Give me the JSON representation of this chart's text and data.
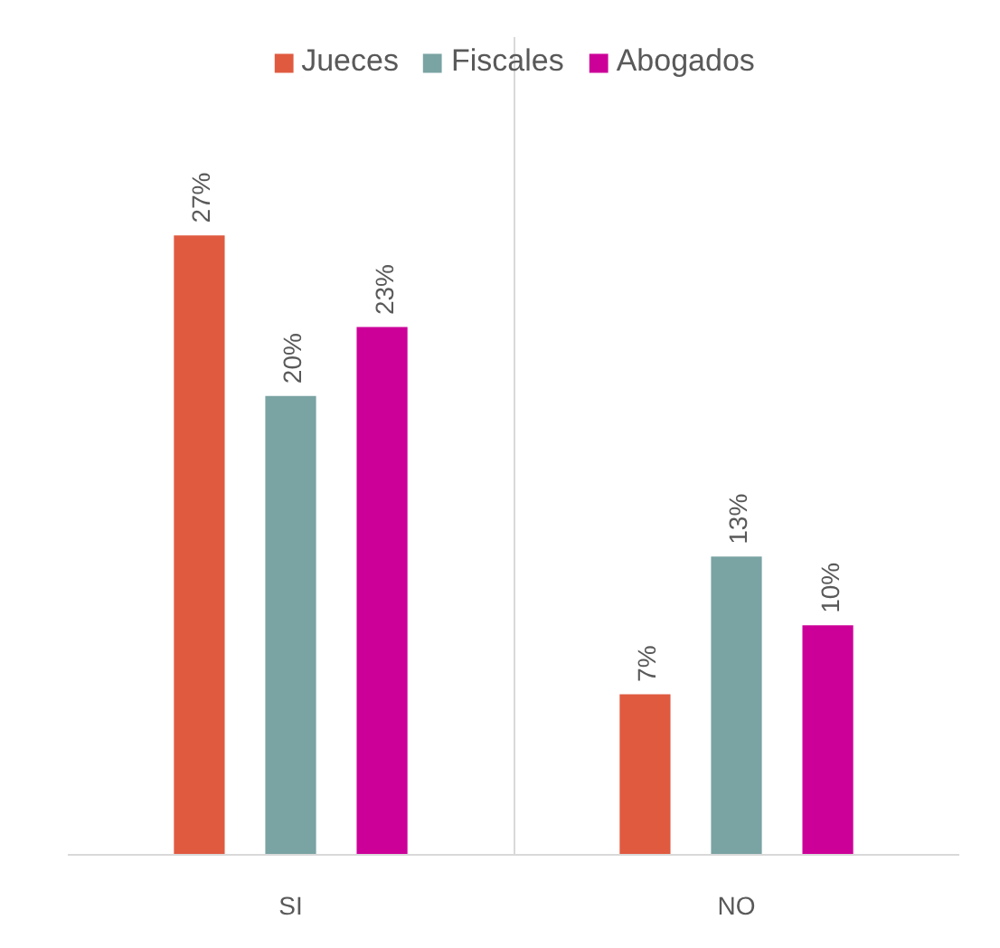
{
  "chart_data": {
    "type": "bar",
    "categories": [
      "SI",
      "NO"
    ],
    "series": [
      {
        "name": "Jueces",
        "color": "#e05a40",
        "values": [
          27,
          7
        ],
        "value_labels": [
          "27%",
          "7%"
        ]
      },
      {
        "name": "Fiscales",
        "color": "#7aa3a3",
        "values": [
          20,
          13
        ],
        "value_labels": [
          "20%",
          "13%"
        ]
      },
      {
        "name": "Abogados",
        "color": "#cc0099",
        "values": [
          23,
          10
        ],
        "value_labels": [
          "23%",
          "10%"
        ]
      }
    ],
    "grid": "x",
    "legend": "top"
  }
}
